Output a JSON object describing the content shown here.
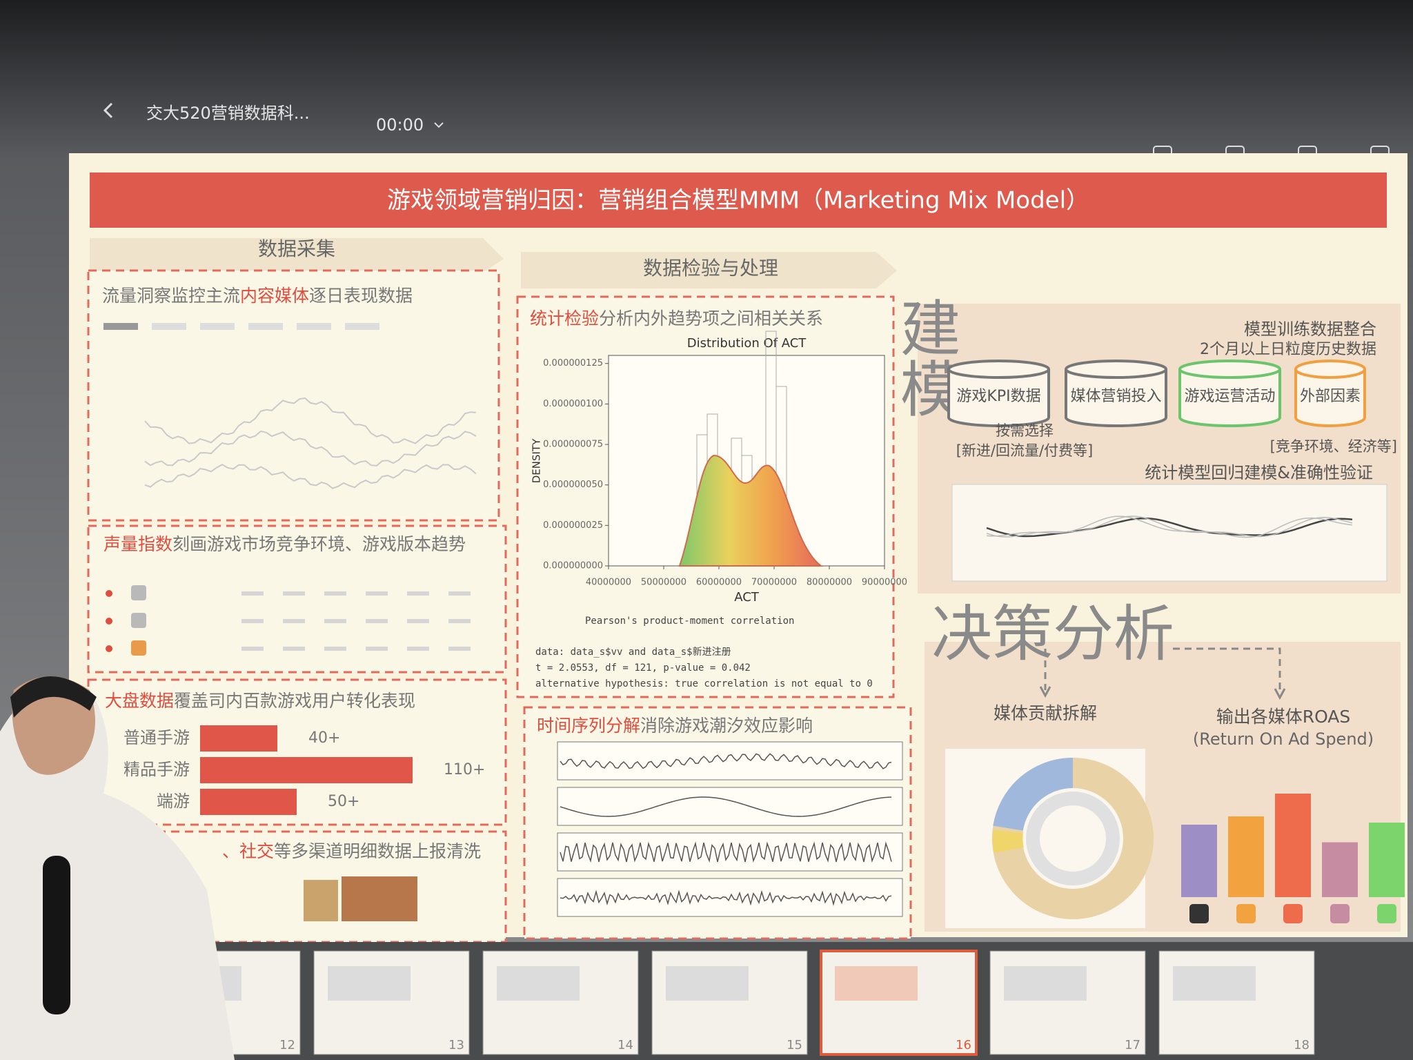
{
  "app": {
    "title": "交大520营销数据科...",
    "timer": "00:00",
    "toolbar": [
      "画笔",
      "自动播放",
      "演讲者视图",
      "录制"
    ]
  },
  "slide": {
    "title": "游戏领域营销归因：营销组合模型MMM（Marketing Mix Model）",
    "sections": {
      "collect": "数据采集",
      "check": "数据检验与处理",
      "model": "建模",
      "decision": "决策分析"
    },
    "panel1": {
      "prefix": "流量洞察监控主流",
      "highlight": "内容媒体",
      "suffix": "逐日表现数据"
    },
    "panel2": {
      "highlight": "声量指数",
      "text": "刻画游戏市场竞争环境、游戏版本趋势"
    },
    "panel3": {
      "highlight": "大盘数据",
      "text": "覆盖司内百款游戏用户转化表现"
    },
    "panel4": {
      "highlight": "、社交",
      "text": "等多渠道明细数据上报清洗"
    },
    "users_chart": {
      "type": "bar",
      "categories": [
        "普通手游",
        "精品手游",
        "端游"
      ],
      "values": [
        40,
        110,
        50
      ],
      "value_labels": [
        "40+",
        "110+",
        "50+"
      ],
      "color": "#e0574a"
    },
    "panel5": {
      "highlight": "统计检验",
      "text": "分析内外趋势项之间相关关系"
    },
    "histogram": {
      "title": "Distribution Of ACT",
      "xlabel": "ACT",
      "ylabel": "DENSITY",
      "xlim": [
        40000000,
        90000000
      ],
      "xticks": [
        40000000,
        50000000,
        60000000,
        70000000,
        80000000,
        90000000
      ],
      "ylim": [
        0,
        1.3e-07
      ],
      "yticks": [
        {
          "value": 0,
          "label": "0.000000000"
        },
        {
          "value": 2.5e-08,
          "label": "0.000000025"
        },
        {
          "value": 5e-08,
          "label": "0.000000050"
        },
        {
          "value": 7.5e-08,
          "label": "0.000000075"
        },
        {
          "value": 1e-07,
          "label": "0.000000100"
        },
        {
          "value": 1.25e-07,
          "label": "0.000000125"
        }
      ]
    },
    "stats": [
      "Pearson's product-moment correlation",
      "data:  data_s$vv and data_s$新进注册",
      "t = 2.0553, df = 121, p-value = 0.042",
      "alternative hypothesis: true correlation is not equal to 0"
    ],
    "panel6": {
      "highlight": "时间序列分解",
      "text": "消除游戏潮汐效应影响"
    },
    "model": {
      "heading": "模型训练数据整合",
      "subheading": "2个月以上日粒度历史数据",
      "sources": [
        "游戏KPI数据",
        "媒体营销投入",
        "游戏运营活动",
        "外部因素"
      ],
      "kpi_note": [
        "按需选择",
        "[新进/回流量/付费等]"
      ],
      "external_note": "[竞争环境、经济等]",
      "validation": "统计模型回归建模&准确性验证"
    },
    "decision": {
      "contribution": "媒体贡献拆解",
      "roas": "输出各媒体ROAS",
      "roas_full": "(Return On Ad Spend)"
    },
    "roas_chart": {
      "type": "bar",
      "values": [
        70,
        78,
        100,
        53,
        72
      ],
      "colors": [
        "#9d8fc6",
        "#f2a23e",
        "#ee6b4b",
        "#c58ca2",
        "#7cd46c"
      ]
    }
  },
  "thumbnails": [
    12,
    13,
    14,
    15,
    16,
    17,
    18
  ]
}
